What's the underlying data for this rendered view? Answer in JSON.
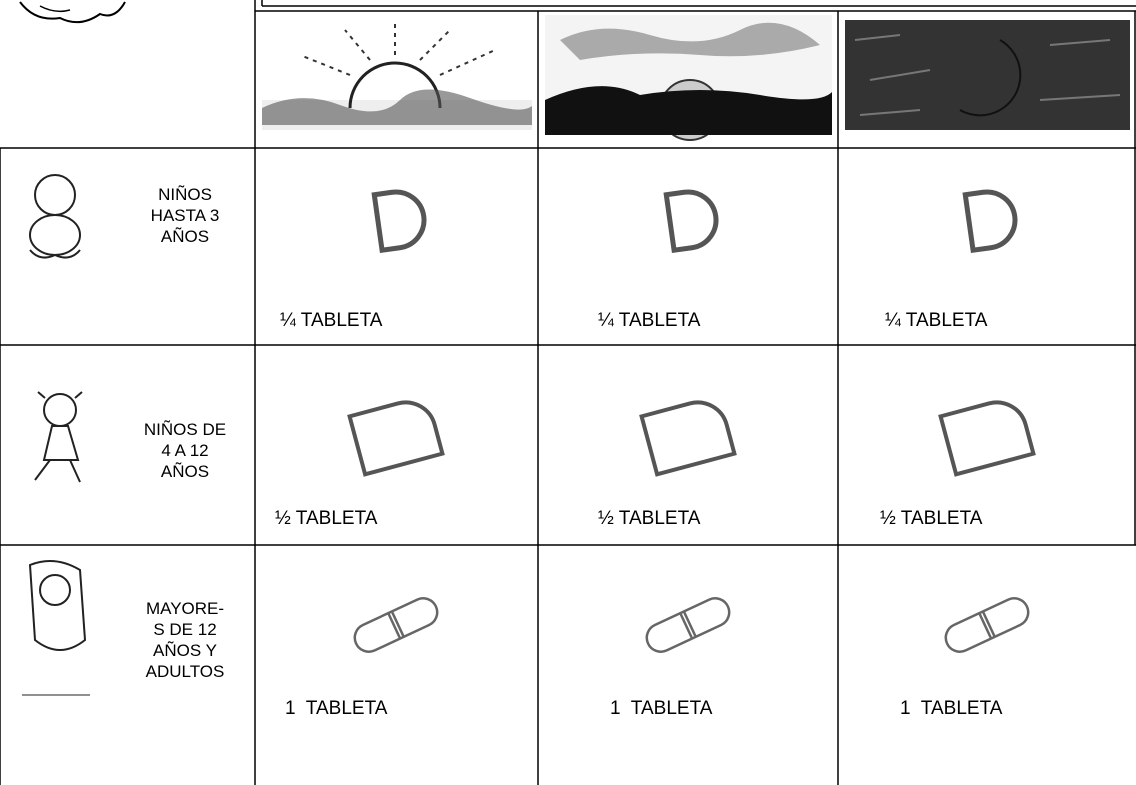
{
  "table": {
    "rows": [
      {
        "label": [
          "NIÑOS",
          "HASTA 3",
          "AÑOS"
        ],
        "doses": [
          "¼ TABLETA",
          "¼ TABLETA",
          "¼ TABLETA"
        ]
      },
      {
        "label": [
          "NIÑOS DE",
          "4 A 12",
          "AÑOS"
        ],
        "doses": [
          "½ TABLETA",
          "½ TABLETA",
          "½ TABLETA"
        ]
      },
      {
        "label": [
          "MAYORE-",
          "S DE 12",
          "AÑOS Y",
          "ADULTOS"
        ],
        "doses": [
          "1  TABLETA",
          "1  TABLETA",
          "1  TABLETA"
        ]
      }
    ]
  }
}
